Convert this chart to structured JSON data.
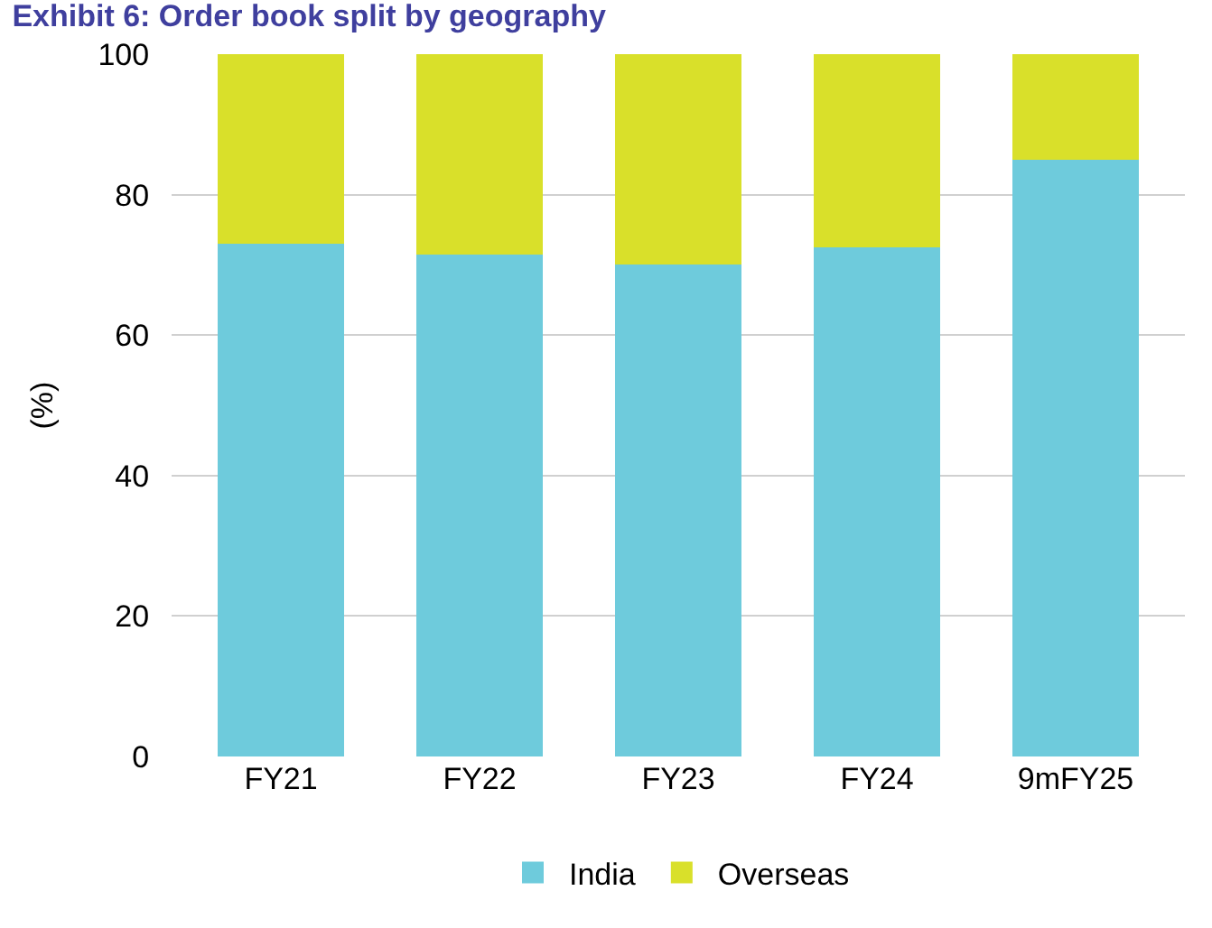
{
  "chart_data": {
    "type": "bar",
    "title": "Exhibit 6: Order book split by geography",
    "ylabel": "(%)",
    "categories": [
      "FY21",
      "FY22",
      "FY23",
      "FY24",
      "9mFY25"
    ],
    "series": [
      {
        "name": "India",
        "color": "#6ecbdc",
        "values": [
          73,
          71.5,
          70,
          72.5,
          85
        ]
      },
      {
        "name": "Overseas",
        "color": "#d9e02a",
        "values": [
          27,
          28.5,
          30,
          27.5,
          15
        ]
      }
    ],
    "stacked": true,
    "ylim": [
      0,
      100
    ],
    "yticks": [
      0,
      20,
      40,
      60,
      80,
      100
    ],
    "grid": "y",
    "legend": "bottom"
  }
}
